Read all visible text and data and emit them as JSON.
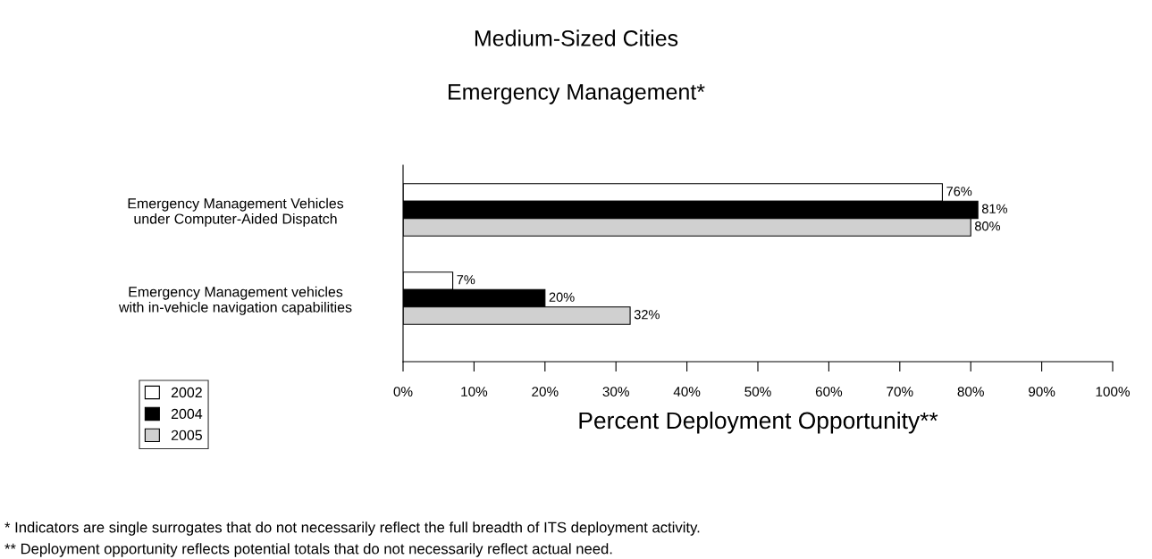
{
  "chart_data": {
    "type": "bar",
    "orientation": "horizontal",
    "title": "Medium-Sized Cities",
    "subtitle": "Emergency Management*",
    "xlabel": "Percent Deployment Opportunity**",
    "categories": [
      "Emergency Management Vehicles\nunder Computer-Aided Dispatch",
      "Emergency Management vehicles\nwith in-vehicle navigation capabilities"
    ],
    "series": [
      {
        "name": "2002",
        "color": "#ffffff",
        "values": [
          76,
          7
        ],
        "value_labels": [
          "76%",
          "7%"
        ]
      },
      {
        "name": "2004",
        "color": "#000000",
        "values": [
          81,
          20
        ],
        "value_labels": [
          "81%",
          "20%"
        ]
      },
      {
        "name": "2005",
        "color": "#d0d0d0",
        "values": [
          80,
          32
        ],
        "value_labels": [
          "80%",
          "32%"
        ]
      }
    ],
    "xlim": [
      0,
      100
    ],
    "xticks": [
      {
        "value": 0,
        "label": "0%"
      },
      {
        "value": 10,
        "label": "10%"
      },
      {
        "value": 20,
        "label": "20%"
      },
      {
        "value": 30,
        "label": "30%"
      },
      {
        "value": 40,
        "label": "40%"
      },
      {
        "value": 50,
        "label": "50%"
      },
      {
        "value": 60,
        "label": "60%"
      },
      {
        "value": 70,
        "label": "70%"
      },
      {
        "value": 80,
        "label": "80%"
      },
      {
        "value": 90,
        "label": "90%"
      },
      {
        "value": 100,
        "label": "100%"
      }
    ],
    "grid": false,
    "legend": "bottom left",
    "annotations": [
      "* Indicators are single surrogates that do not necessarily reflect the full breadth of ITS deployment activity.",
      "** Deployment opportunity reflects potential totals that do not necessarily reflect actual need."
    ]
  }
}
